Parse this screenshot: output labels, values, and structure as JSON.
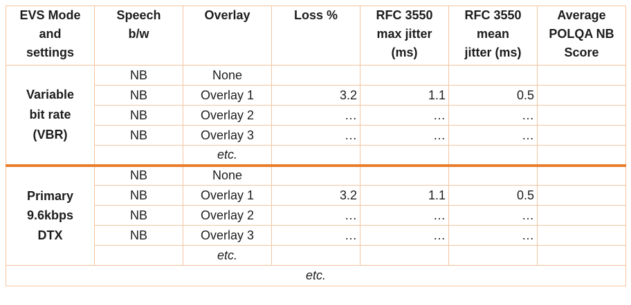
{
  "colors": {
    "thick_border": "#E87E2E",
    "thin_border": "#F5C49E",
    "text": "#1c1c1c"
  },
  "table": {
    "headers": [
      [
        "EVS Mode",
        "and",
        "settings"
      ],
      [
        "Speech",
        "b/w"
      ],
      [
        "Overlay"
      ],
      [
        "Loss %"
      ],
      [
        "RFC 3550",
        "max jitter",
        "(ms)"
      ],
      [
        "RFC 3550",
        "mean",
        "jitter (ms)"
      ],
      [
        "Average",
        "POLQA NB",
        "Score"
      ]
    ],
    "groups": [
      {
        "label": [
          "Variable",
          "bit rate",
          "(VBR)"
        ],
        "rows": [
          {
            "cells": [
              "NB",
              "None",
              "",
              "",
              "",
              ""
            ]
          },
          {
            "cells": [
              "NB",
              "Overlay 1",
              "3.2",
              "1.1",
              "0.5",
              ""
            ]
          },
          {
            "cells": [
              "NB",
              "Overlay 2",
              "…",
              "…",
              "…",
              ""
            ]
          },
          {
            "cells": [
              "NB",
              "Overlay 3",
              "…",
              "…",
              "…",
              ""
            ]
          },
          {
            "cells": [
              "",
              "etc.",
              "",
              "",
              "",
              ""
            ]
          }
        ]
      },
      {
        "label": [
          "Primary",
          "9.6kbps",
          "DTX"
        ],
        "rows": [
          {
            "cells": [
              "NB",
              "None",
              "",
              "",
              "",
              ""
            ]
          },
          {
            "cells": [
              "NB",
              "Overlay 1",
              "3.2",
              "1.1",
              "0.5",
              ""
            ]
          },
          {
            "cells": [
              "NB",
              "Overlay 2",
              "…",
              "…",
              "…",
              ""
            ]
          },
          {
            "cells": [
              "NB",
              "Overlay 3",
              "…",
              "…",
              "…",
              ""
            ]
          },
          {
            "cells": [
              "",
              "etc.",
              "",
              "",
              "",
              ""
            ]
          }
        ]
      }
    ],
    "footer": "etc."
  }
}
